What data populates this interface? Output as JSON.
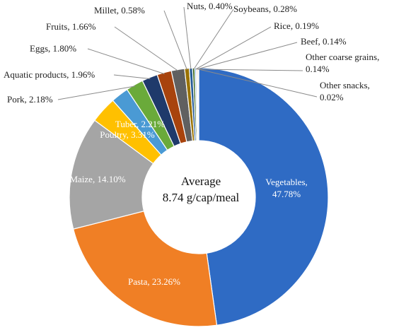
{
  "chart_data": {
    "type": "pie",
    "style": "donut",
    "center_text": [
      "Average",
      "8.74 g/cap/meal"
    ],
    "slices": [
      {
        "name": "Vegetables",
        "value": 47.78,
        "label": "Vegetables,\n47.78%",
        "color": "#2f6bc4",
        "label_inside": true
      },
      {
        "name": "Pasta",
        "value": 23.26,
        "label": "Pasta, 23.26%",
        "color": "#f07f25",
        "label_inside": true
      },
      {
        "name": "Maize",
        "value": 14.1,
        "label": "Maize, 14.10%",
        "color": "#a5a5a5",
        "label_inside": true
      },
      {
        "name": "Poultry",
        "value": 3.31,
        "label": "Poultry, 3.31%",
        "color": "#ffc000",
        "label_inside": true
      },
      {
        "name": "Tuber",
        "value": 2.21,
        "label": "Tuber, 2.21%",
        "color": "#4a9ad4",
        "label_inside": true
      },
      {
        "name": "Pork",
        "value": 2.18,
        "label": "Pork, 2.18%",
        "color": "#6aaa3a",
        "label_inside": false
      },
      {
        "name": "Aquatic products",
        "value": 1.96,
        "label": "Aquatic products, 1.96%",
        "color": "#1f3a6b",
        "label_inside": false
      },
      {
        "name": "Eggs",
        "value": 1.8,
        "label": "Eggs, 1.80%",
        "color": "#a8430d",
        "label_inside": false
      },
      {
        "name": "Fruits",
        "value": 1.66,
        "label": "Fruits, 1.66%",
        "color": "#606060",
        "label_inside": false
      },
      {
        "name": "Millet",
        "value": 0.58,
        "label": "Millet, 0.58%",
        "color": "#9a7200",
        "label_inside": false
      },
      {
        "name": "Nuts",
        "value": 0.4,
        "label": "Nuts, 0.40%",
        "color": "#245a96",
        "label_inside": false
      },
      {
        "name": "Soybeans",
        "value": 0.28,
        "label": "Soybeans, 0.28%",
        "color": "#3f6b22",
        "label_inside": false
      },
      {
        "name": "Rice",
        "value": 0.19,
        "label": "Rice, 0.19%",
        "color": "#8fbce6",
        "label_inside": false
      },
      {
        "name": "Beef",
        "value": 0.14,
        "label": "Beef, 0.14%",
        "color": "#f4a86a",
        "label_inside": false
      },
      {
        "name": "Other coarse grains",
        "value": 0.14,
        "label": "Other coarse grains,\n0.14%",
        "color": "#c8c8c8",
        "label_inside": false
      },
      {
        "name": "Other snacks",
        "value": 0.02,
        "label": "Other snacks,\n0.02%",
        "color": "#ffd966",
        "label_inside": false
      }
    ],
    "start_angle": "12 o'clock",
    "direction": "clockwise",
    "legend": "none"
  }
}
